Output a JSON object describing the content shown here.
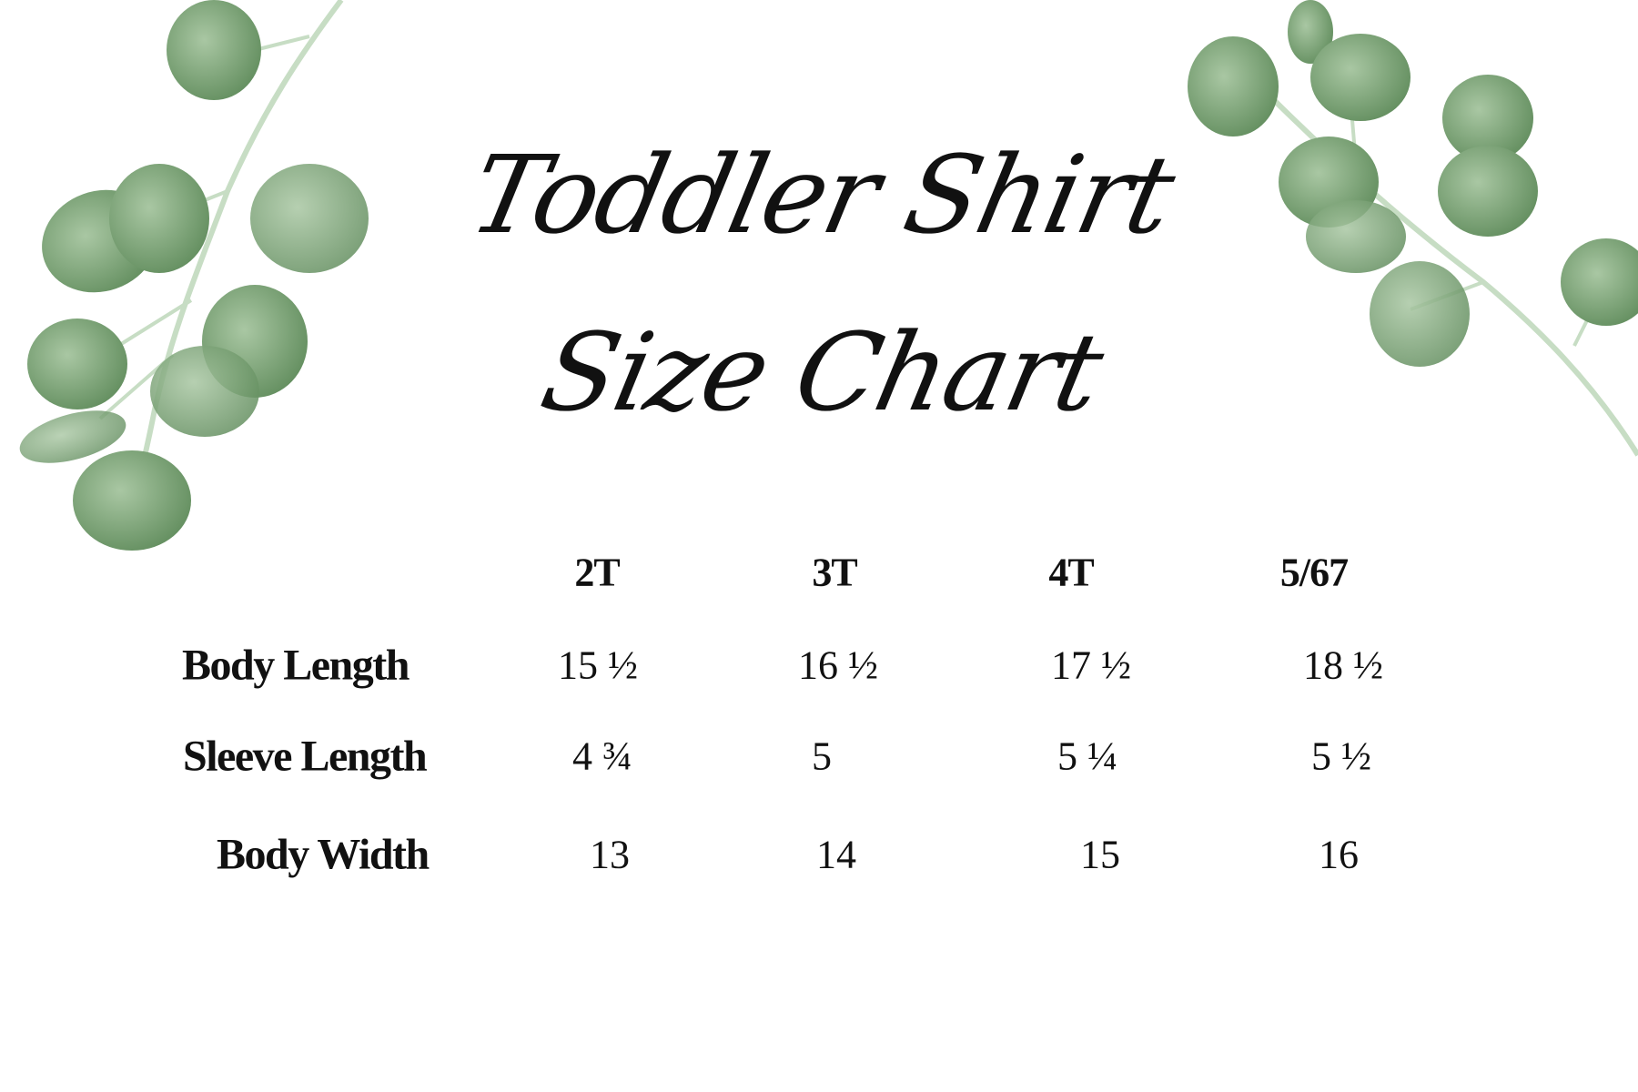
{
  "title": {
    "line1": "Toddler Shirt",
    "line2": "Size Chart"
  },
  "table": {
    "sizes": [
      "2T",
      "3T",
      "4T",
      "5/67"
    ],
    "rows": [
      {
        "label": "Body Length",
        "values": [
          "15 ½",
          "16 ½",
          "17 ½",
          "18 ½"
        ]
      },
      {
        "label": "Sleeve Length",
        "values": [
          "4 ¾",
          "5",
          "5 ¼",
          "5 ½"
        ]
      },
      {
        "label": "Body Width",
        "values": [
          "13",
          "14",
          "15",
          "16"
        ]
      }
    ]
  },
  "colors": {
    "leaf": "#6f9a6a",
    "leaf_light": "#a9c7a3",
    "stem": "#c7ddc4",
    "text": "#111111"
  },
  "decorations": {
    "left": "eucalyptus-branch",
    "right": "eucalyptus-branch"
  }
}
